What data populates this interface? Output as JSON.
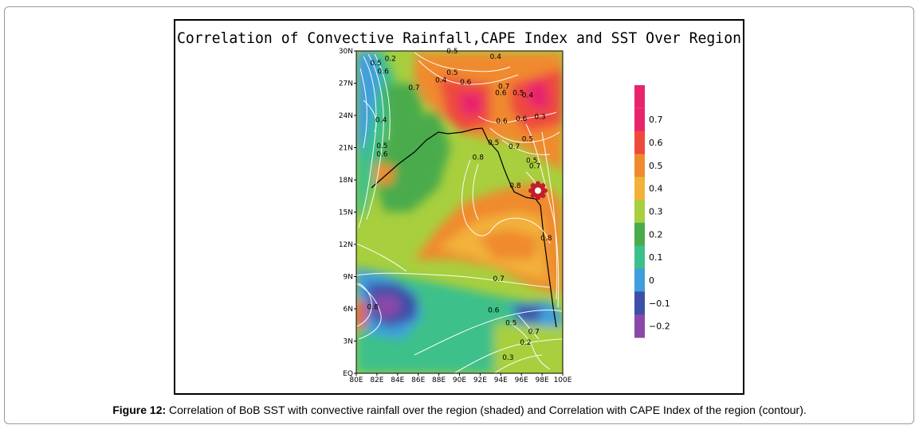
{
  "chart_data": {
    "type": "heatmap",
    "title": "Correlation of Convective Rainfall,CAPE Index and SST Over Region",
    "x_ticks": [
      "80E",
      "82E",
      "84E",
      "86E",
      "88E",
      "90E",
      "92E",
      "94E",
      "96E",
      "98E",
      "100E"
    ],
    "y_ticks": [
      "EQ",
      "3N",
      "6N",
      "9N",
      "12N",
      "15N",
      "18N",
      "21N",
      "24N",
      "27N",
      "30N"
    ],
    "xlim": [
      80,
      100
    ],
    "ylim": [
      0,
      30
    ],
    "colorbar": {
      "levels": [
        "0.7",
        "0.6",
        "0.5",
        "0.4",
        "0.3",
        "0.2",
        "0.1",
        "0",
        "−0.1",
        "−0.2"
      ],
      "colors": [
        "#e8246e",
        "#ee4a3c",
        "#f08a2e",
        "#f2b23a",
        "#a8cf3e",
        "#4aab4c",
        "#3cc08a",
        "#3f9fdc",
        "#3e4fa8",
        "#8a49a8"
      ]
    },
    "contour_labels": [
      {
        "text": "0.5",
        "lon": 89.3,
        "lat": 30.0
      },
      {
        "text": "0.2",
        "lon": 83.3,
        "lat": 29.3
      },
      {
        "text": "0.5",
        "lon": 81.9,
        "lat": 28.9
      },
      {
        "text": "0.6",
        "lon": 82.6,
        "lat": 28.1
      },
      {
        "text": "0.4",
        "lon": 93.5,
        "lat": 29.5
      },
      {
        "text": "0.4",
        "lon": 88.2,
        "lat": 27.3
      },
      {
        "text": "0.5",
        "lon": 89.3,
        "lat": 28.0
      },
      {
        "text": "0.6",
        "lon": 90.6,
        "lat": 27.1
      },
      {
        "text": "0.7",
        "lon": 85.6,
        "lat": 26.6
      },
      {
        "text": "0.7",
        "lon": 94.3,
        "lat": 26.7
      },
      {
        "text": "0.6",
        "lon": 94.0,
        "lat": 26.1
      },
      {
        "text": "0.5",
        "lon": 95.7,
        "lat": 26.1
      },
      {
        "text": "0.4",
        "lon": 96.6,
        "lat": 25.9
      },
      {
        "text": "0.4",
        "lon": 82.4,
        "lat": 23.6
      },
      {
        "text": "0.6",
        "lon": 94.1,
        "lat": 23.5
      },
      {
        "text": "0.6",
        "lon": 96.0,
        "lat": 23.7
      },
      {
        "text": "0.3",
        "lon": 97.8,
        "lat": 23.9
      },
      {
        "text": "0.5",
        "lon": 82.5,
        "lat": 21.2
      },
      {
        "text": "0.6",
        "lon": 82.5,
        "lat": 20.4
      },
      {
        "text": "0.5",
        "lon": 93.3,
        "lat": 21.5
      },
      {
        "text": "0.7",
        "lon": 95.3,
        "lat": 21.1
      },
      {
        "text": "0.5",
        "lon": 96.6,
        "lat": 21.8
      },
      {
        "text": "0.8",
        "lon": 91.8,
        "lat": 20.1
      },
      {
        "text": "0.5",
        "lon": 97.0,
        "lat": 19.8
      },
      {
        "text": "0.7",
        "lon": 97.3,
        "lat": 19.3
      },
      {
        "text": "0.8",
        "lon": 95.4,
        "lat": 17.5
      },
      {
        "text": "0.8",
        "lon": 98.4,
        "lat": 12.6
      },
      {
        "text": "0.7",
        "lon": 93.8,
        "lat": 8.8
      },
      {
        "text": "0.8",
        "lon": 81.6,
        "lat": 6.2
      },
      {
        "text": "0.6",
        "lon": 93.3,
        "lat": 5.9
      },
      {
        "text": "0.5",
        "lon": 95.0,
        "lat": 4.7
      },
      {
        "text": "0.7",
        "lon": 97.2,
        "lat": 3.9
      },
      {
        "text": "0.2",
        "lon": 96.4,
        "lat": 2.9
      },
      {
        "text": "0.3",
        "lon": 94.7,
        "lat": 1.5
      }
    ]
  },
  "caption": {
    "label": "Figure 12:",
    "text": " Correlation of BoB SST with convective rainfall over the region (shaded) and Correlation with CAPE Index of the region (contour)."
  }
}
